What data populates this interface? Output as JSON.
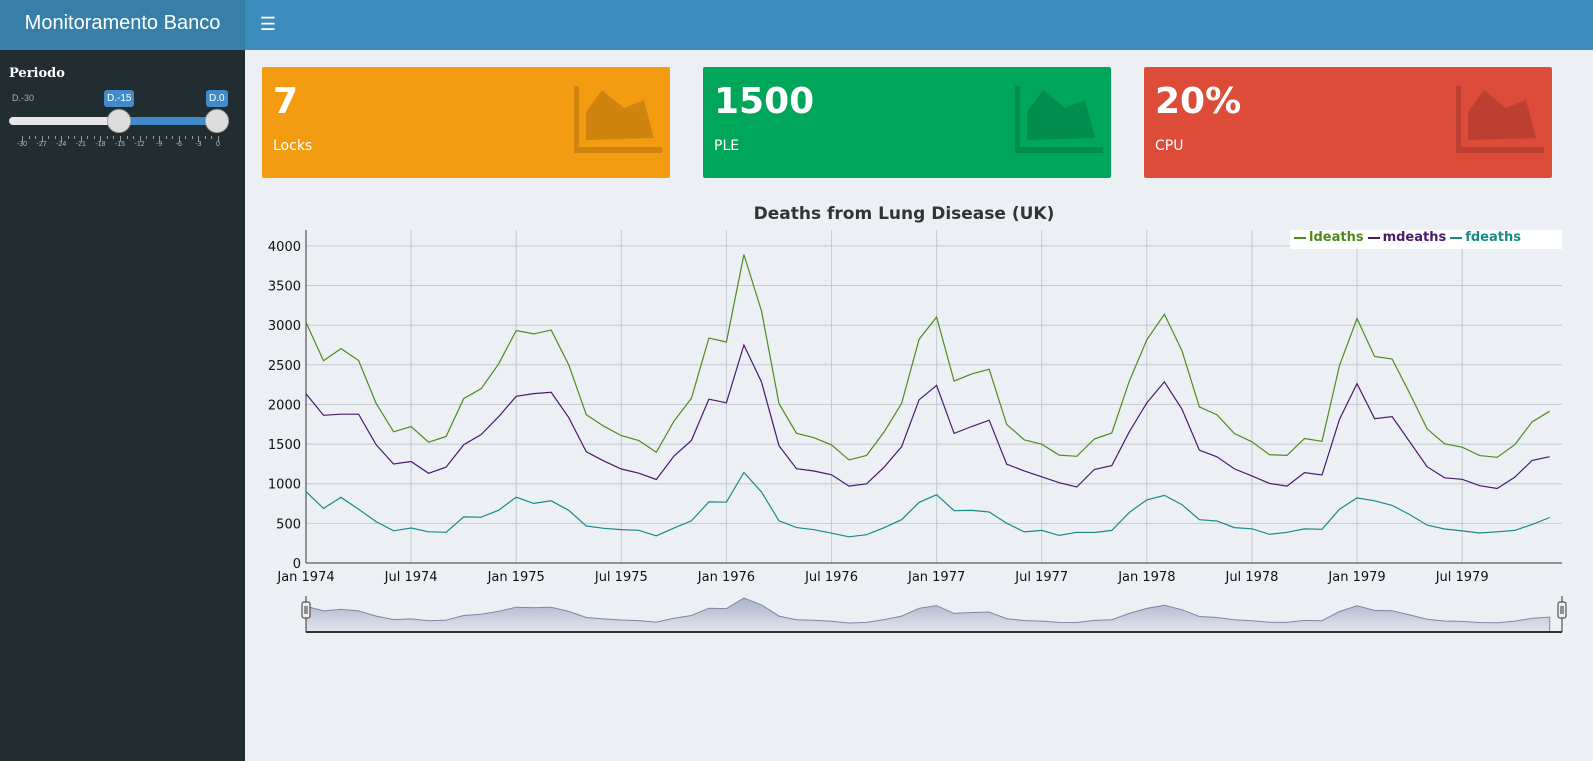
{
  "header": {
    "title": "Monitoramento Banco",
    "menu_icon": "hamburger-icon"
  },
  "sidebar": {
    "label": "Periodo",
    "slider": {
      "min_label": "D.-30",
      "from_label": "D.-15",
      "to_label": "D.0",
      "ticks": [
        "-30",
        "-27",
        "-24",
        "-21",
        "-18",
        "-15",
        "-12",
        "-9",
        "-6",
        "-3",
        "0"
      ]
    }
  },
  "infoboxes": [
    {
      "value": "7",
      "label": "Locks",
      "color": "#f39c12",
      "icon": "area-chart-icon"
    },
    {
      "value": "1500",
      "label": "PLE",
      "color": "#00a65a",
      "icon": "area-chart-icon"
    },
    {
      "value": "20%",
      "label": "CPU",
      "color": "#dd4b39",
      "icon": "area-chart-icon"
    }
  ],
  "chart_data": {
    "type": "line",
    "title": "Deaths from Lung Disease (UK)",
    "ylim": [
      0,
      4200
    ],
    "y_ticks": [
      "0",
      "500",
      "1000",
      "1500",
      "2000",
      "2500",
      "3000",
      "3500",
      "4000"
    ],
    "x_tick_labels": [
      "Jan 1974",
      "Jul 1974",
      "Jan 1975",
      "Jul 1975",
      "Jan 1976",
      "Jul 1976",
      "Jan 1977",
      "Jul 1977",
      "Jan 1978",
      "Jul 1978",
      "Jan 1979",
      "Jul 1979"
    ],
    "x_start": "1974-01",
    "x_end": "1979-12",
    "grid": true,
    "legend_position": "top-right",
    "range_selector": true,
    "series": [
      {
        "name": "ldeaths",
        "color": "#4e8b1f",
        "values": [
          3035,
          2552,
          2704,
          2554,
          2014,
          1655,
          1721,
          1524,
          1596,
          2074,
          2199,
          2512,
          2933,
          2889,
          2938,
          2497,
          1870,
          1726,
          1607,
          1545,
          1396,
          1787,
          2076,
          2837,
          2787,
          3891,
          3179,
          2011,
          1636,
          1580,
          1489,
          1300,
          1356,
          1653,
          2013,
          2823,
          3102,
          2294,
          2385,
          2444,
          1748,
          1554,
          1498,
          1361,
          1346,
          1564,
          1640,
          2293,
          2815,
          3137,
          2679,
          1969,
          1870,
          1633,
          1529,
          1366,
          1357,
          1570,
          1535,
          2491,
          3084,
          2605,
          2573,
          2143,
          1693,
          1504,
          1461,
          1354,
          1333,
          1492,
          1781,
          1915
        ]
      },
      {
        "name": "mdeaths",
        "color": "#4b1a6b",
        "values": [
          2134,
          1863,
          1877,
          1877,
          1492,
          1249,
          1280,
          1131,
          1209,
          1492,
          1621,
          1846,
          2103,
          2137,
          2153,
          1833,
          1403,
          1288,
          1186,
          1133,
          1053,
          1347,
          1545,
          2066,
          2020,
          2750,
          2283,
          1479,
          1189,
          1160,
          1113,
          970,
          999,
          1208,
          1467,
          2059,
          2240,
          1634,
          1722,
          1801,
          1246,
          1162,
          1087,
          1013,
          959,
          1179,
          1229,
          1655,
          2019,
          2284,
          1942,
          1423,
          1340,
          1187,
          1098,
          1004,
          970,
          1140,
          1110,
          1812,
          2263,
          1820,
          1846,
          1531,
          1215,
          1075,
          1056,
          975,
          940,
          1081,
          1294,
          1341
        ]
      },
      {
        "name": "fdeaths",
        "color": "#1a8a88",
        "values": [
          901,
          689,
          827,
          677,
          522,
          406,
          441,
          393,
          387,
          582,
          578,
          666,
          830,
          752,
          785,
          664,
          467,
          438,
          421,
          412,
          343,
          440,
          531,
          771,
          767,
          1141,
          896,
          532,
          447,
          420,
          376,
          330,
          357,
          445,
          546,
          764,
          862,
          660,
          663,
          643,
          502,
          392,
          411,
          348,
          387,
          385,
          411,
          638,
          796,
          853,
          737,
          546,
          530,
          446,
          431,
          362,
          387,
          430,
          425,
          679,
          821,
          785,
          727,
          612,
          478,
          429,
          405,
          379,
          393,
          411,
          487,
          574
        ]
      }
    ]
  }
}
